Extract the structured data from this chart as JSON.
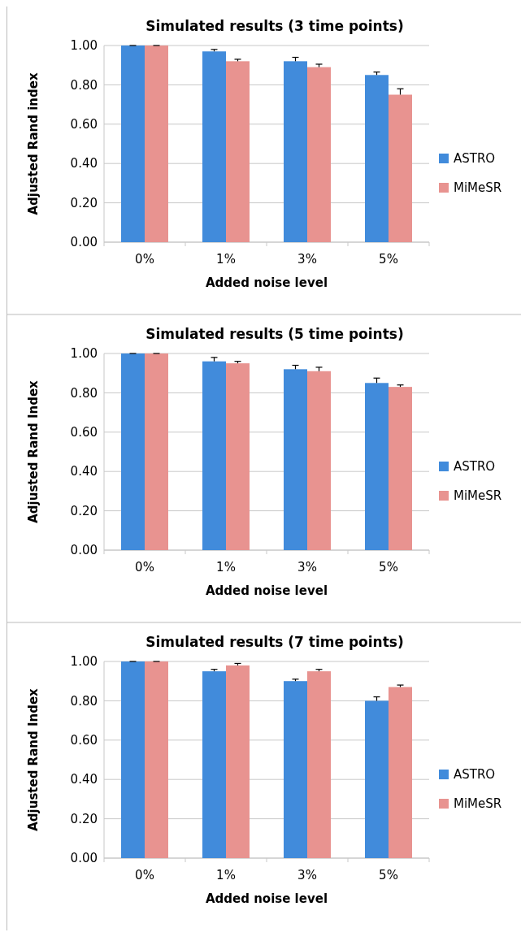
{
  "chart_data": [
    {
      "type": "bar",
      "title": "Simulated results (3 time points)",
      "xlabel": "Added noise level",
      "ylabel": "Adjusted Rand index",
      "categories": [
        "0%",
        "1%",
        "3%",
        "5%"
      ],
      "ylim": [
        0,
        1
      ],
      "yticks": [
        {
          "value": 0,
          "label": "0.00"
        },
        {
          "value": 0.2,
          "label": "0.20"
        },
        {
          "value": 0.4,
          "label": "0.40"
        },
        {
          "value": 0.6,
          "label": "0.60"
        },
        {
          "value": 0.8,
          "label": "0.80"
        },
        {
          "value": 1,
          "label": "1.00"
        }
      ],
      "grid": "y",
      "legend": "right",
      "series": [
        {
          "name": "ASTRO",
          "color": "#418bdb",
          "values": [
            1.0,
            0.97,
            0.92,
            0.85
          ],
          "errors": [
            [
              1.0,
              1.0
            ],
            [
              0.97,
              0.98
            ],
            [
              0.92,
              0.94
            ],
            [
              0.85,
              0.865
            ]
          ]
        },
        {
          "name": "MiMeSR",
          "color": "#e89390",
          "values": [
            1.0,
            0.92,
            0.89,
            0.75
          ],
          "errors": [
            [
              1.0,
              1.0
            ],
            [
              0.92,
              0.93
            ],
            [
              0.89,
              0.905
            ],
            [
              0.75,
              0.78
            ]
          ]
        }
      ]
    },
    {
      "type": "bar",
      "title": "Simulated results (5 time points)",
      "xlabel": "Added noise level",
      "ylabel": "Adjusted Rand Index",
      "categories": [
        "0%",
        "1%",
        "3%",
        "5%"
      ],
      "ylim": [
        0,
        1
      ],
      "yticks": [
        {
          "value": 0,
          "label": "0.00"
        },
        {
          "value": 0.2,
          "label": "0.20"
        },
        {
          "value": 0.4,
          "label": "0.40"
        },
        {
          "value": 0.6,
          "label": "0.60"
        },
        {
          "value": 0.8,
          "label": "0.80"
        },
        {
          "value": 1,
          "label": "1.00"
        }
      ],
      "grid": "y",
      "legend": "right",
      "series": [
        {
          "name": "ASTRO",
          "color": "#418bdb",
          "values": [
            1.0,
            0.96,
            0.92,
            0.85
          ],
          "errors": [
            [
              1.0,
              1.0
            ],
            [
              0.96,
              0.98
            ],
            [
              0.92,
              0.94
            ],
            [
              0.85,
              0.875
            ]
          ]
        },
        {
          "name": "MiMeSR",
          "color": "#e89390",
          "values": [
            1.0,
            0.95,
            0.91,
            0.83
          ],
          "errors": [
            [
              1.0,
              1.0
            ],
            [
              0.95,
              0.96
            ],
            [
              0.91,
              0.93
            ],
            [
              0.83,
              0.84
            ]
          ]
        }
      ]
    },
    {
      "type": "bar",
      "title": "Simulated results (7 time points)",
      "xlabel": "Added noise level",
      "ylabel": "Adjusted Rand Index",
      "categories": [
        "0%",
        "1%",
        "3%",
        "5%"
      ],
      "ylim": [
        0,
        1
      ],
      "yticks": [
        {
          "value": 0,
          "label": "0.00"
        },
        {
          "value": 0.2,
          "label": "0.20"
        },
        {
          "value": 0.4,
          "label": "0.40"
        },
        {
          "value": 0.6,
          "label": "0.60"
        },
        {
          "value": 0.8,
          "label": "0.80"
        },
        {
          "value": 1,
          "label": "1.00"
        }
      ],
      "grid": "y",
      "legend": "right",
      "series": [
        {
          "name": "ASTRO",
          "color": "#418bdb",
          "values": [
            1.0,
            0.95,
            0.9,
            0.8
          ],
          "errors": [
            [
              1.0,
              1.0
            ],
            [
              0.95,
              0.96
            ],
            [
              0.9,
              0.91
            ],
            [
              0.8,
              0.82
            ]
          ]
        },
        {
          "name": "MiMeSR",
          "color": "#e89390",
          "values": [
            1.0,
            0.98,
            0.95,
            0.87
          ],
          "errors": [
            [
              1.0,
              1.0
            ],
            [
              0.98,
              0.99
            ],
            [
              0.95,
              0.96
            ],
            [
              0.87,
              0.88
            ]
          ]
        }
      ]
    }
  ]
}
